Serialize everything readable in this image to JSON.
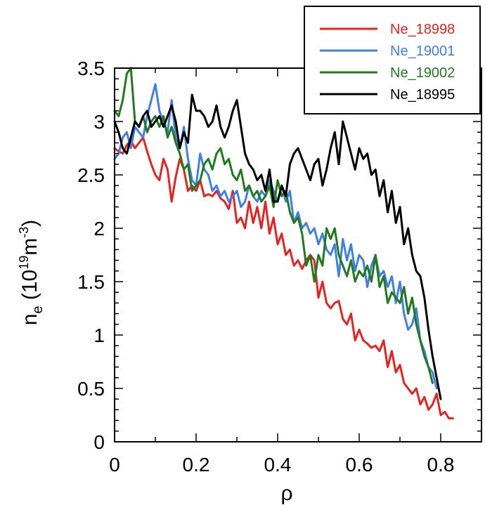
{
  "chart_data": {
    "type": "line",
    "xlabel": "ρ",
    "ylabel": {
      "base": "n",
      "subscript": "e",
      "unit_open": " (10",
      "unit_exp": "19",
      "unit_mid": "m",
      "unit_exp2": "-3",
      "unit_close": ")"
    },
    "xlim": [
      0,
      0.9
    ],
    "ylim": [
      0,
      3.5
    ],
    "xticks": [
      0,
      0.2,
      0.4,
      0.6,
      0.8
    ],
    "xtick_labels": [
      "0",
      "0.2",
      "0.4",
      "0.6",
      "0.8"
    ],
    "yticks": [
      0,
      0.5,
      1,
      1.5,
      2,
      2.5,
      3,
      3.5
    ],
    "ytick_labels": [
      "0",
      "0.5",
      "1",
      "1.5",
      "2",
      "2.5",
      "3",
      "3.5"
    ],
    "legend_position": "top-right",
    "grid": false,
    "series": [
      {
        "name": "Ne_18998",
        "color": "#e8221f",
        "x": [
          0,
          0.01,
          0.02,
          0.03,
          0.04,
          0.05,
          0.06,
          0.07,
          0.08,
          0.09,
          0.1,
          0.11,
          0.12,
          0.13,
          0.14,
          0.15,
          0.16,
          0.17,
          0.18,
          0.19,
          0.2,
          0.21,
          0.22,
          0.23,
          0.24,
          0.25,
          0.26,
          0.27,
          0.28,
          0.29,
          0.3,
          0.31,
          0.32,
          0.33,
          0.34,
          0.35,
          0.36,
          0.37,
          0.38,
          0.39,
          0.4,
          0.41,
          0.42,
          0.43,
          0.44,
          0.45,
          0.46,
          0.47,
          0.48,
          0.49,
          0.5,
          0.51,
          0.52,
          0.53,
          0.54,
          0.55,
          0.56,
          0.57,
          0.58,
          0.59,
          0.6,
          0.61,
          0.62,
          0.63,
          0.64,
          0.65,
          0.66,
          0.67,
          0.68,
          0.69,
          0.7,
          0.71,
          0.72,
          0.73,
          0.74,
          0.75,
          0.76,
          0.77,
          0.78,
          0.79,
          0.8,
          0.81,
          0.82,
          0.83
        ],
        "y": [
          2.75,
          2.72,
          2.7,
          2.78,
          2.82,
          2.75,
          2.8,
          2.85,
          2.72,
          2.6,
          2.5,
          2.45,
          2.65,
          2.55,
          2.25,
          2.48,
          2.65,
          2.55,
          2.35,
          2.4,
          2.35,
          2.45,
          2.3,
          2.32,
          2.3,
          2.35,
          2.28,
          2.25,
          2.18,
          2.35,
          2.05,
          2.1,
          2.0,
          2.25,
          2.05,
          2.2,
          2.0,
          2.25,
          1.95,
          2.1,
          1.85,
          1.95,
          1.75,
          1.8,
          1.65,
          1.7,
          1.62,
          1.7,
          1.75,
          1.7,
          1.35,
          1.5,
          1.3,
          1.25,
          1.3,
          1.32,
          1.15,
          1.1,
          1.2,
          0.95,
          1.05,
          0.95,
          0.92,
          0.88,
          0.9,
          0.85,
          0.95,
          0.7,
          0.85,
          0.65,
          0.72,
          0.55,
          0.5,
          0.45,
          0.5,
          0.35,
          0.42,
          0.3,
          0.35,
          0.45,
          0.25,
          0.28,
          0.22,
          0.22
        ]
      },
      {
        "name": "Ne_19001",
        "color": "#3f7fe6",
        "x": [
          0,
          0.01,
          0.02,
          0.03,
          0.04,
          0.05,
          0.06,
          0.07,
          0.08,
          0.09,
          0.1,
          0.11,
          0.12,
          0.13,
          0.14,
          0.15,
          0.16,
          0.17,
          0.18,
          0.19,
          0.2,
          0.21,
          0.22,
          0.23,
          0.24,
          0.25,
          0.26,
          0.27,
          0.28,
          0.29,
          0.3,
          0.31,
          0.32,
          0.33,
          0.34,
          0.35,
          0.36,
          0.37,
          0.38,
          0.39,
          0.4,
          0.41,
          0.42,
          0.43,
          0.44,
          0.45,
          0.46,
          0.47,
          0.48,
          0.49,
          0.5,
          0.51,
          0.52,
          0.53,
          0.54,
          0.55,
          0.56,
          0.57,
          0.58,
          0.59,
          0.6,
          0.61,
          0.62,
          0.63,
          0.64,
          0.65,
          0.66,
          0.67,
          0.68,
          0.69,
          0.7,
          0.71,
          0.72,
          0.73,
          0.74,
          0.75,
          0.76,
          0.77,
          0.78,
          0.79
        ],
        "y": [
          2.65,
          2.7,
          2.85,
          2.9,
          2.75,
          2.95,
          2.9,
          2.85,
          3.05,
          3.2,
          3.35,
          3.1,
          3.0,
          2.9,
          3.2,
          2.85,
          2.75,
          2.95,
          2.65,
          2.45,
          2.4,
          2.7,
          2.55,
          2.5,
          2.35,
          2.4,
          2.3,
          2.35,
          2.25,
          2.3,
          2.35,
          2.2,
          2.25,
          2.4,
          2.3,
          2.25,
          2.35,
          2.3,
          2.45,
          2.35,
          2.25,
          2.4,
          2.25,
          2.35,
          2.05,
          2.15,
          2.0,
          2.05,
          1.95,
          2.0,
          1.85,
          1.95,
          1.8,
          1.75,
          1.85,
          1.55,
          1.9,
          1.7,
          1.85,
          1.6,
          1.75,
          1.7,
          1.45,
          1.65,
          1.75,
          1.55,
          1.6,
          1.45,
          1.55,
          1.3,
          1.5,
          1.2,
          1.05,
          1.1,
          1.25,
          0.95,
          0.85,
          0.7,
          0.65,
          0.5
        ]
      },
      {
        "name": "Ne_19002",
        "color": "#217a1e",
        "x": [
          0,
          0.01,
          0.02,
          0.03,
          0.04,
          0.05,
          0.06,
          0.07,
          0.08,
          0.09,
          0.1,
          0.11,
          0.12,
          0.13,
          0.14,
          0.15,
          0.16,
          0.17,
          0.18,
          0.19,
          0.2,
          0.21,
          0.22,
          0.23,
          0.24,
          0.25,
          0.26,
          0.27,
          0.28,
          0.29,
          0.3,
          0.31,
          0.32,
          0.33,
          0.34,
          0.35,
          0.36,
          0.37,
          0.38,
          0.39,
          0.4,
          0.41,
          0.42,
          0.43,
          0.44,
          0.45,
          0.46,
          0.47,
          0.48,
          0.49,
          0.5,
          0.51,
          0.52,
          0.53,
          0.54,
          0.55,
          0.56,
          0.57,
          0.58,
          0.59,
          0.6,
          0.61,
          0.62,
          0.63,
          0.64,
          0.65,
          0.66,
          0.67,
          0.68,
          0.69,
          0.7,
          0.71,
          0.72,
          0.73,
          0.74,
          0.75,
          0.76,
          0.77,
          0.78
        ],
        "y": [
          3.1,
          3.05,
          3.2,
          3.45,
          3.5,
          3.0,
          2.95,
          3.05,
          2.9,
          3.0,
          3.05,
          2.95,
          3.05,
          2.85,
          2.95,
          2.8,
          2.7,
          2.55,
          2.6,
          2.35,
          2.4,
          2.45,
          2.6,
          2.65,
          2.55,
          2.7,
          2.75,
          2.6,
          2.65,
          2.5,
          2.45,
          2.55,
          2.35,
          2.4,
          2.3,
          2.35,
          2.25,
          2.3,
          2.4,
          2.2,
          2.45,
          2.3,
          2.35,
          2.15,
          2.05,
          2.1,
          1.95,
          1.65,
          1.75,
          1.5,
          1.75,
          1.65,
          2.0,
          1.9,
          2.0,
          1.75,
          1.65,
          1.55,
          1.7,
          1.5,
          1.6,
          1.55,
          1.65,
          1.5,
          1.75,
          1.45,
          1.55,
          1.3,
          1.4,
          1.35,
          1.3,
          1.45,
          1.2,
          1.35,
          1.1,
          0.95,
          0.8,
          0.7,
          0.55
        ]
      },
      {
        "name": "Ne_18995",
        "color": "#000000",
        "x": [
          0,
          0.01,
          0.02,
          0.03,
          0.04,
          0.05,
          0.06,
          0.07,
          0.08,
          0.09,
          0.1,
          0.11,
          0.12,
          0.13,
          0.14,
          0.15,
          0.16,
          0.17,
          0.18,
          0.19,
          0.2,
          0.21,
          0.22,
          0.23,
          0.24,
          0.25,
          0.26,
          0.27,
          0.28,
          0.29,
          0.3,
          0.31,
          0.32,
          0.33,
          0.34,
          0.35,
          0.36,
          0.37,
          0.38,
          0.39,
          0.4,
          0.41,
          0.42,
          0.43,
          0.44,
          0.45,
          0.46,
          0.47,
          0.48,
          0.49,
          0.5,
          0.51,
          0.52,
          0.53,
          0.54,
          0.55,
          0.56,
          0.57,
          0.58,
          0.59,
          0.6,
          0.61,
          0.62,
          0.63,
          0.64,
          0.65,
          0.66,
          0.67,
          0.68,
          0.69,
          0.7,
          0.71,
          0.72,
          0.73,
          0.74,
          0.75,
          0.76,
          0.77,
          0.78,
          0.79,
          0.8
        ],
        "y": [
          3.0,
          2.9,
          2.75,
          2.7,
          2.85,
          3.0,
          2.95,
          3.05,
          3.1,
          2.95,
          3.0,
          3.05,
          2.95,
          3.05,
          3.15,
          3.0,
          2.75,
          2.9,
          2.8,
          3.25,
          3.1,
          3.1,
          3.05,
          2.95,
          3.0,
          3.15,
          2.95,
          2.85,
          2.95,
          3.1,
          3.2,
          2.95,
          2.7,
          2.6,
          2.55,
          2.45,
          2.5,
          2.35,
          2.55,
          2.25,
          2.25,
          2.4,
          2.3,
          2.6,
          2.7,
          2.75,
          2.65,
          2.55,
          2.45,
          2.6,
          2.65,
          2.4,
          2.55,
          2.75,
          2.9,
          2.6,
          3.0,
          2.85,
          2.7,
          2.55,
          2.75,
          2.65,
          2.7,
          2.5,
          2.55,
          2.3,
          2.45,
          2.15,
          2.35,
          2.05,
          2.2,
          1.85,
          2.0,
          1.75,
          1.6,
          1.55,
          1.35,
          1.05,
          0.8,
          0.6,
          0.4
        ]
      }
    ]
  }
}
